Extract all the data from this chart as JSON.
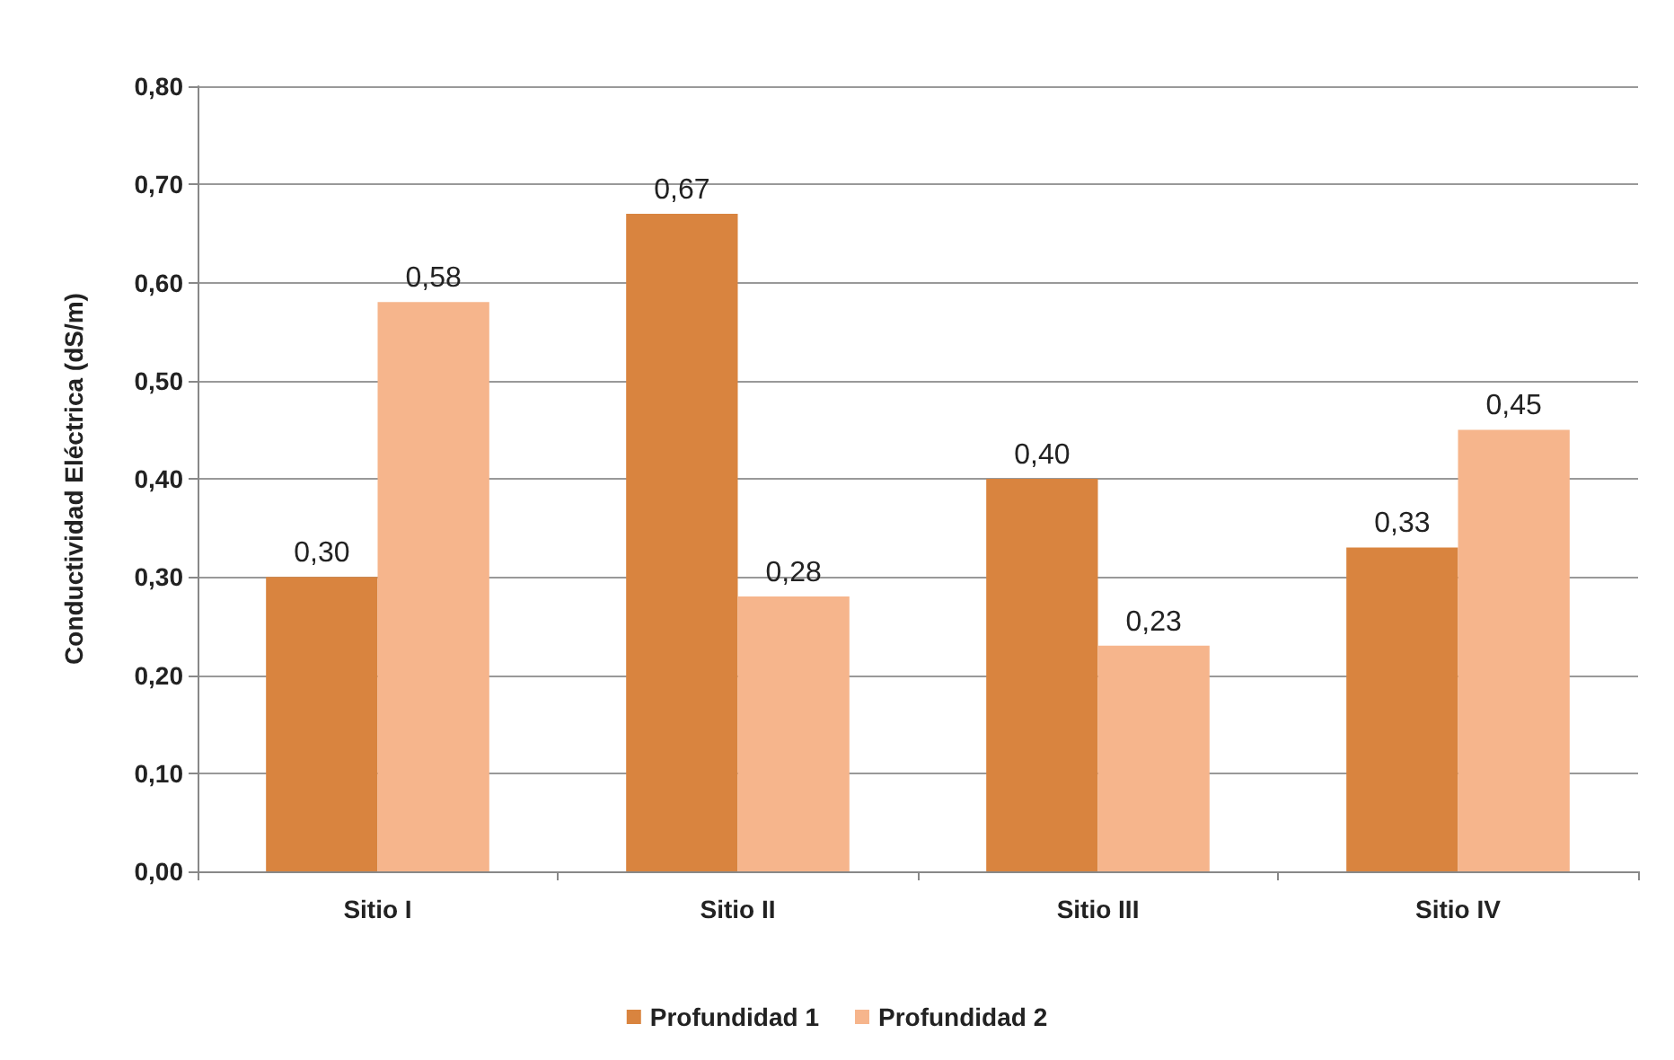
{
  "chart_data": {
    "type": "bar",
    "ylabel": "Conductividad Eléctrica (dS/m)",
    "categories": [
      "Sitio I",
      "Sitio II",
      "Sitio III",
      "Sitio IV"
    ],
    "series": [
      {
        "name": "Profundidad 1",
        "color": "#d9843f",
        "values": [
          0.3,
          0.67,
          0.4,
          0.33
        ],
        "value_labels": [
          "0,30",
          "0,67",
          "0,40",
          "0,33"
        ]
      },
      {
        "name": "Profundidad 2",
        "color": "#f6b58c",
        "values": [
          0.58,
          0.28,
          0.23,
          0.45
        ],
        "value_labels": [
          "0,58",
          "0,28",
          "0,23",
          "0,45"
        ]
      }
    ],
    "ylim": [
      0,
      0.8
    ],
    "yticks": [
      {
        "value": 0,
        "label": "0,00"
      },
      {
        "value": 0.1,
        "label": "0,10"
      },
      {
        "value": 0.2,
        "label": "0,20"
      },
      {
        "value": 0.3,
        "label": "0,30"
      },
      {
        "value": 0.4,
        "label": "0,40"
      },
      {
        "value": 0.5,
        "label": "0,50"
      },
      {
        "value": 0.6,
        "label": "0,60"
      },
      {
        "value": 0.7,
        "label": "0,70"
      },
      {
        "value": 0.8,
        "label": "0,80"
      }
    ],
    "grid": "y",
    "legend": "bottom"
  }
}
